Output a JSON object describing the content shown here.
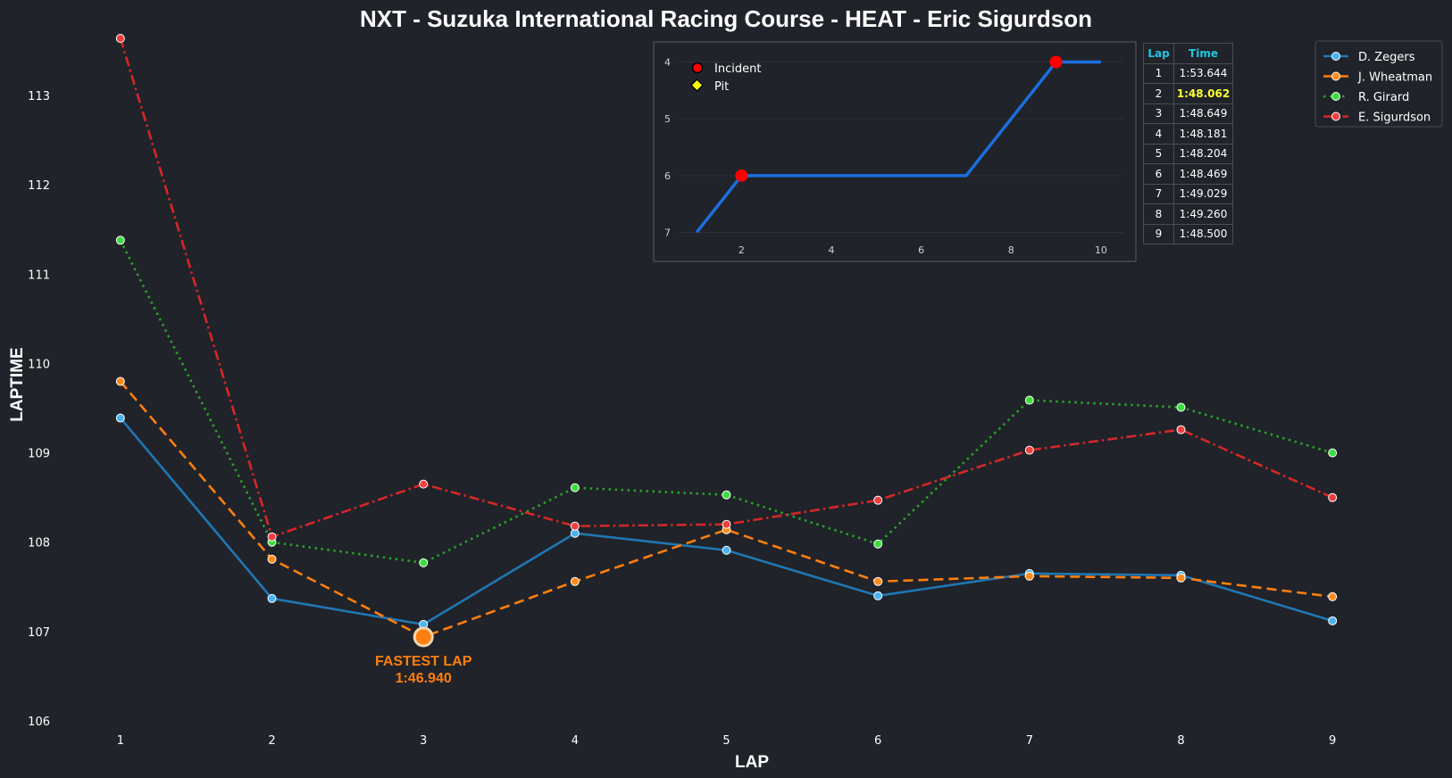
{
  "chart_data": [
    {
      "type": "line",
      "title": "NXT - Suzuka International Racing Course - HEAT - Eric Sigurdson",
      "xlabel": "LAP",
      "ylabel": "LAPTIME",
      "x": [
        1,
        2,
        3,
        4,
        5,
        6,
        7,
        8,
        9
      ],
      "xlim": [
        0.5,
        9.5
      ],
      "ylim": [
        105.9,
        113.65
      ],
      "yticks": [
        106,
        107,
        108,
        109,
        110,
        111,
        112,
        113
      ],
      "grid": false,
      "legend_position": "top-right",
      "series": [
        {
          "name": "D. Zegers",
          "color": "#1f77b4",
          "marker_color": "#4ab3f0",
          "dash": "solid",
          "values": [
            109.39,
            107.37,
            107.08,
            108.1,
            107.91,
            107.4,
            107.65,
            107.63,
            107.12
          ]
        },
        {
          "name": "J. Wheatman",
          "color": "#ff7f0e",
          "marker_color": "#ff8c1a",
          "dash": "dashed",
          "values": [
            109.8,
            107.81,
            106.94,
            107.56,
            108.14,
            107.56,
            107.62,
            107.6,
            107.39
          ]
        },
        {
          "name": "R. Girard",
          "color": "#2ca02c",
          "marker_color": "#3fdc3f",
          "dash": "dotted",
          "values": [
            111.38,
            108.0,
            107.77,
            108.61,
            108.53,
            107.98,
            109.59,
            109.51,
            109.0
          ]
        },
        {
          "name": "E. Sigurdson",
          "color": "#d62728",
          "marker_color": "#ef4040",
          "dash": "dashdot",
          "values": [
            113.64,
            108.06,
            108.65,
            108.18,
            108.2,
            108.47,
            109.03,
            109.26,
            108.5
          ]
        }
      ],
      "annotation": {
        "line1": "FASTEST LAP",
        "line2": "1:46.940",
        "lap": 3,
        "value": 106.94,
        "series": "J. Wheatman"
      }
    },
    {
      "type": "line",
      "title": "",
      "x": [
        1,
        2,
        3,
        4,
        5,
        6,
        7,
        8,
        9,
        10
      ],
      "values": [
        7,
        6,
        6,
        6,
        6,
        6,
        6,
        5,
        4,
        4
      ],
      "xlim": [
        0.6,
        10.5
      ],
      "ylim": [
        7.15,
        3.85
      ],
      "xticks": [
        2,
        4,
        6,
        8,
        10
      ],
      "yticks": [
        4,
        5,
        6,
        7
      ],
      "y_inverted": true,
      "color": "#1a6fe0",
      "incidents": [
        {
          "x": 2,
          "y": 6
        },
        {
          "x": 9,
          "y": 4
        }
      ],
      "legend": {
        "incident_label": "Incident",
        "pit_label": "Pit",
        "incident_color": "#ff0000",
        "pit_color": "#ffff00"
      }
    },
    {
      "type": "table",
      "headers": [
        "Lap",
        "Time"
      ],
      "rows": [
        [
          "1",
          "1:53.644"
        ],
        [
          "2",
          "1:48.062"
        ],
        [
          "3",
          "1:48.649"
        ],
        [
          "4",
          "1:48.181"
        ],
        [
          "5",
          "1:48.204"
        ],
        [
          "6",
          "1:48.469"
        ],
        [
          "7",
          "1:49.029"
        ],
        [
          "8",
          "1:49.260"
        ],
        [
          "9",
          "1:48.500"
        ]
      ],
      "best_row": 1
    }
  ]
}
